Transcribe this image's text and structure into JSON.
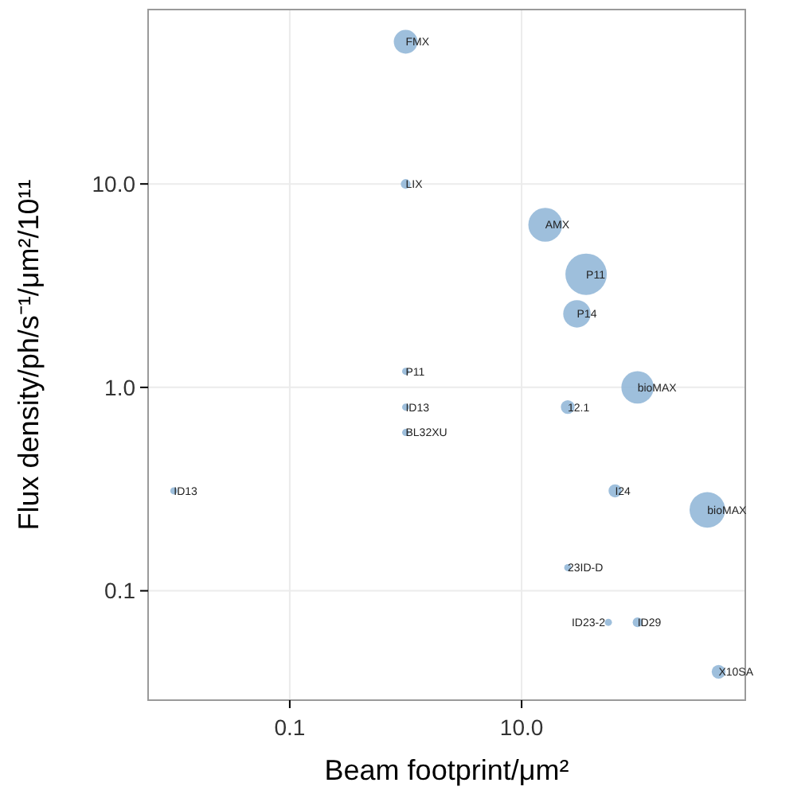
{
  "chart_data": {
    "type": "bubble",
    "xlabel": "Beam footprint/μm²",
    "ylabel": "Flux density/ph/s⁻¹/μm²/10¹¹",
    "log": "xy",
    "grid": true,
    "marker": "circle",
    "xlim": [
      0.006,
      850
    ],
    "ylim": [
      0.029,
      72
    ],
    "xticks": [
      0.1,
      {
        "value": 10,
        "label": "10.0"
      }
    ],
    "yticks": [
      0.1,
      {
        "value": 1,
        "label": "1.0"
      },
      {
        "value": 10,
        "label": "10.0"
      }
    ],
    "series": [
      {
        "color": "#94b8d8",
        "x": [
          1,
          1,
          16,
          36,
          30,
          1,
          100,
          1,
          25,
          1,
          0.01,
          64,
          400,
          25,
          56,
          100,
          500
        ],
        "values": [
          50,
          10,
          6.3,
          3.6,
          2.3,
          1.2,
          1.0,
          0.8,
          0.8,
          0.6,
          0.31,
          0.31,
          0.25,
          0.13,
          0.07,
          0.07,
          0.04
        ],
        "sizes": [
          0.33,
          0.055,
          0.67,
          1,
          0.44,
          0.03,
          0.61,
          0.03,
          0.11,
          0.03,
          0.03,
          0.1,
          0.74,
          0.03,
          0.03,
          0.055,
          0.11
        ]
      }
    ],
    "annotations": [
      {
        "text": "FMX",
        "x": 1,
        "y": 50
      },
      {
        "text": "LIX",
        "x": 1,
        "y": 10
      },
      {
        "text": "AMX",
        "x": 16,
        "y": 6.3
      },
      {
        "text": "P11",
        "x": 36,
        "y": 3.6
      },
      {
        "text": "P14",
        "x": 30,
        "y": 2.3
      },
      {
        "text": "P11",
        "x": 1,
        "y": 1.2
      },
      {
        "text": "bioMAX",
        "x": 100,
        "y": 1.0
      },
      {
        "text": "ID13",
        "x": 1,
        "y": 0.8
      },
      {
        "text": "12.1",
        "x": 25,
        "y": 0.8
      },
      {
        "text": "BL32XU",
        "x": 1,
        "y": 0.6
      },
      {
        "text": "ID13",
        "x": 0.01,
        "y": 0.31
      },
      {
        "text": "I24",
        "x": 64,
        "y": 0.31
      },
      {
        "text": "bioMAX",
        "x": 400,
        "y": 0.25
      },
      {
        "text": "23ID-D",
        "x": 25,
        "y": 0.13
      },
      {
        "text": "ID23-2",
        "x": 56,
        "y": 0.07
      },
      {
        "text": "ID29",
        "x": 100,
        "y": 0.07
      },
      {
        "text": "X10SA",
        "x": 500,
        "y": 0.04
      }
    ]
  }
}
